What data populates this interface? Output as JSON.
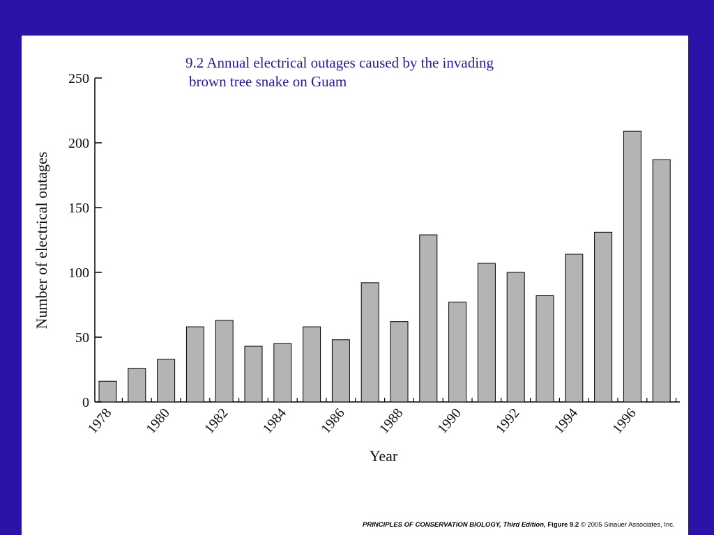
{
  "caption": {
    "line1": "9.2  Annual electrical outages caused by the invading",
    "line2": "brown tree snake on Guam"
  },
  "footer": {
    "book": "PRINCIPLES OF CONSERVATION BIOLOGY, Third Edition,",
    "figure": "Figure 9.2",
    "copyright": "© 2005 Sinauer Associates, Inc."
  },
  "colors": {
    "background": "#2a14a8",
    "caption": "#2a14a8",
    "bar_fill": "#b4b4b4",
    "bar_stroke": "#000000"
  },
  "chart_data": {
    "type": "bar",
    "title": "",
    "xlabel": "Year",
    "ylabel": "Number of electrical outages",
    "ylim": [
      0,
      250
    ],
    "yticks": [
      0,
      50,
      100,
      150,
      200,
      250
    ],
    "categories": [
      1978,
      1979,
      1980,
      1981,
      1982,
      1983,
      1984,
      1985,
      1986,
      1987,
      1988,
      1989,
      1990,
      1991,
      1992,
      1993,
      1994,
      1995,
      1996,
      1997
    ],
    "xtick_labels": [
      "1978",
      "1980",
      "1982",
      "1984",
      "1986",
      "1988",
      "1990",
      "1992",
      "1994",
      "1996"
    ],
    "values": [
      16,
      26,
      33,
      58,
      63,
      43,
      45,
      58,
      48,
      92,
      62,
      129,
      77,
      107,
      100,
      82,
      114,
      131,
      209,
      187
    ],
    "grid": false,
    "legend": "none"
  }
}
